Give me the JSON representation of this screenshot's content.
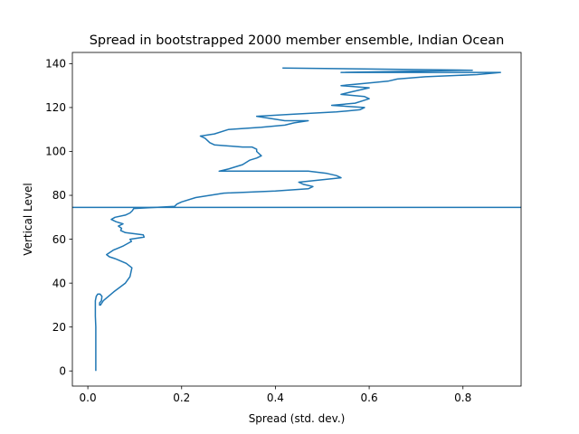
{
  "chart_data": {
    "type": "line",
    "title": "Spread in bootstrapped 2000 member ensemble, Indian Ocean",
    "xlabel": "Spread (std. dev.)",
    "ylabel": "Vertical Level",
    "xlim": [
      -0.033,
      0.924
    ],
    "ylim": [
      -6.9,
      145.1
    ],
    "xticks": [
      0.0,
      0.2,
      0.4,
      0.6,
      0.8
    ],
    "xtick_labels": [
      "0.0",
      "0.2",
      "0.4",
      "0.6",
      "0.8"
    ],
    "yticks": [
      0,
      20,
      40,
      60,
      80,
      100,
      120,
      140
    ],
    "ytick_labels": [
      "0",
      "20",
      "40",
      "60",
      "80",
      "100",
      "120",
      "140"
    ],
    "grid": false,
    "line_color": "#1f77b4",
    "hline": {
      "y": 74.5
    },
    "series": [
      {
        "x": [
          0.017,
          0.017,
          0.017,
          0.016,
          0.016,
          0.016,
          0.016,
          0.017,
          0.018,
          0.021,
          0.026,
          0.03,
          0.029,
          0.025,
          0.025,
          0.027,
          0.033,
          0.055,
          0.08,
          0.09,
          0.094,
          0.082,
          0.06,
          0.046,
          0.04,
          0.054,
          0.076,
          0.093,
          0.09,
          0.12,
          0.118,
          0.08,
          0.07,
          0.072,
          0.065,
          0.075,
          0.06,
          0.05,
          0.058,
          0.08,
          0.09,
          0.095,
          0.098,
          0.185,
          0.19,
          0.2,
          0.23,
          0.29,
          0.4,
          0.47,
          0.48,
          0.46,
          0.45,
          0.54,
          0.53,
          0.51,
          0.47,
          0.28,
          0.3,
          0.33,
          0.345,
          0.36,
          0.37,
          0.36,
          0.36,
          0.35,
          0.33,
          0.27,
          0.26,
          0.25,
          0.24,
          0.27,
          0.3,
          0.37,
          0.42,
          0.44,
          0.47,
          0.42,
          0.36,
          0.44,
          0.53,
          0.58,
          0.59,
          0.52,
          0.57,
          0.6,
          0.59,
          0.54,
          0.56,
          0.58,
          0.6,
          0.54,
          0.59,
          0.64,
          0.66,
          0.72,
          0.83,
          0.88,
          0.54,
          0.82,
          0.415
        ],
        "y": [
          0,
          10,
          20,
          25,
          27,
          30,
          32,
          33,
          34,
          35,
          35,
          34,
          32,
          31,
          30,
          30,
          32,
          36,
          40,
          43,
          47,
          49,
          51,
          52,
          53,
          55,
          57,
          59,
          60,
          61,
          62,
          63,
          64,
          65,
          66,
          67,
          68,
          69,
          70,
          71,
          72,
          73,
          74,
          75,
          76,
          77,
          79,
          81,
          82,
          83,
          84,
          85,
          86,
          88,
          89,
          90,
          91,
          91,
          92,
          94,
          96,
          97,
          98,
          100,
          101,
          102,
          102,
          103,
          104,
          106,
          107,
          108,
          110,
          111,
          112,
          113,
          114,
          114,
          116,
          117,
          118,
          119,
          120,
          121,
          122,
          124,
          125,
          126,
          127,
          128,
          129,
          130,
          131,
          132,
          133,
          134,
          135,
          136,
          136,
          137,
          138
        ]
      }
    ]
  }
}
